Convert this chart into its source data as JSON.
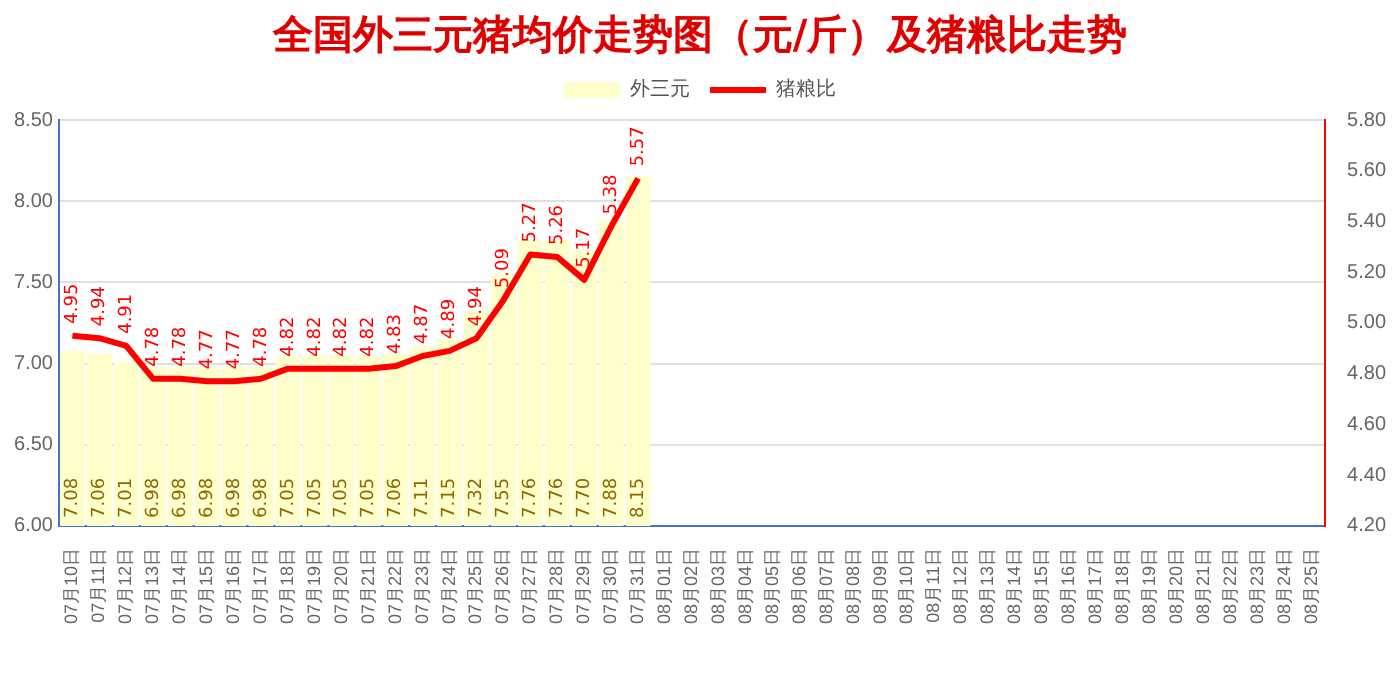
{
  "chart_data": {
    "type": "bar",
    "title": "全国外三元猪均价走势图（元/斤）及猪粮比走势",
    "categories": [
      "07月10日",
      "07月11日",
      "07月12日",
      "07月13日",
      "07月14日",
      "07月15日",
      "07月16日",
      "07月17日",
      "07月18日",
      "07月19日",
      "07月20日",
      "07月21日",
      "07月22日",
      "07月23日",
      "07月24日",
      "07月25日",
      "07月26日",
      "07月27日",
      "07月28日",
      "07月29日",
      "07月30日",
      "07月31日",
      "08月01日",
      "08月02日",
      "08月03日",
      "08月04日",
      "08月05日",
      "08月06日",
      "08月07日",
      "08月08日",
      "08月09日",
      "08月10日",
      "08月11日",
      "08月12日",
      "08月13日",
      "08月14日",
      "08月15日",
      "08月16日",
      "08月17日",
      "08月18日",
      "08月19日",
      "08月20日",
      "08月21日",
      "08月22日",
      "08月23日",
      "08月24日",
      "08月25日"
    ],
    "series": [
      {
        "name": "外三元",
        "color": "#ffffcc",
        "values": [
          7.08,
          7.06,
          7.01,
          6.98,
          6.98,
          6.98,
          6.98,
          6.98,
          7.05,
          7.05,
          7.05,
          7.05,
          7.06,
          7.11,
          7.15,
          7.32,
          7.55,
          7.76,
          7.76,
          7.7,
          7.88,
          8.15,
          null,
          null,
          null,
          null,
          null,
          null,
          null,
          null,
          null,
          null,
          null,
          null,
          null,
          null,
          null,
          null,
          null,
          null,
          null,
          null,
          null,
          null,
          null,
          null,
          null
        ],
        "value_labels": [
          "7.08",
          "7.06",
          "7.01",
          "6.98",
          "6.98",
          "6.98",
          "6.98",
          "6.98",
          "7.05",
          "7.05",
          "7.05",
          "7.05",
          "7.06",
          "7.11",
          "7.15",
          "7.32",
          "7.55",
          "7.76",
          "7.76",
          "7.70",
          "7.88",
          "8.15",
          null,
          null,
          null,
          null,
          null,
          null,
          null,
          null,
          null,
          null,
          null,
          null,
          null,
          null,
          null,
          null,
          null,
          null,
          null,
          null,
          null,
          null,
          null,
          null,
          null
        ]
      },
      {
        "name": "猪粮比",
        "type": "line",
        "axis": "y2",
        "color": "#ff0000",
        "values": [
          4.95,
          4.94,
          4.91,
          4.78,
          4.78,
          4.77,
          4.77,
          4.78,
          4.82,
          4.82,
          4.82,
          4.82,
          4.83,
          4.87,
          4.89,
          4.94,
          5.09,
          5.27,
          5.26,
          5.17,
          5.38,
          5.57,
          null,
          null,
          null,
          null,
          null,
          null,
          null,
          null,
          null,
          null,
          null,
          null,
          null,
          null,
          null,
          null,
          null,
          null,
          null,
          null,
          null,
          null,
          null,
          null,
          null
        ],
        "value_labels": [
          "4.95",
          "4.94",
          "4.91",
          "4.78",
          "4.78",
          "4.77",
          "4.77",
          "4.78",
          "4.82",
          "4.82",
          "4.82",
          "4.82",
          "4.83",
          "4.87",
          "4.89",
          "4.94",
          "5.09",
          "5.27",
          "5.26",
          "5.17",
          "5.38",
          "5.57",
          null,
          null,
          null,
          null,
          null,
          null,
          null,
          null,
          null,
          null,
          null,
          null,
          null,
          null,
          null,
          null,
          null,
          null,
          null,
          null,
          null,
          null,
          null,
          null,
          null
        ]
      }
    ],
    "ylim": [
      6,
      8.5
    ],
    "yticks": [
      {
        "value": 6,
        "label": "6.00"
      },
      {
        "value": 6.5,
        "label": "6.50"
      },
      {
        "value": 7,
        "label": "7.00"
      },
      {
        "value": 7.5,
        "label": "7.50"
      },
      {
        "value": 8,
        "label": "8.00"
      },
      {
        "value": 8.5,
        "label": "8.50"
      }
    ],
    "y2lim": [
      4.2,
      5.8
    ],
    "y2ticks": [
      {
        "value": 4.2,
        "label": "4.20"
      },
      {
        "value": 4.4,
        "label": "4.40"
      },
      {
        "value": 4.6,
        "label": "4.60"
      },
      {
        "value": 4.8,
        "label": "4.80"
      },
      {
        "value": 5,
        "label": "5.00"
      },
      {
        "value": 5.2,
        "label": "5.20"
      },
      {
        "value": 5.4,
        "label": "5.40"
      },
      {
        "value": 5.6,
        "label": "5.60"
      },
      {
        "value": 5.8,
        "label": "5.80"
      }
    ],
    "grid": "y",
    "legend": "top",
    "marker": "none",
    "line_style": "solid"
  }
}
